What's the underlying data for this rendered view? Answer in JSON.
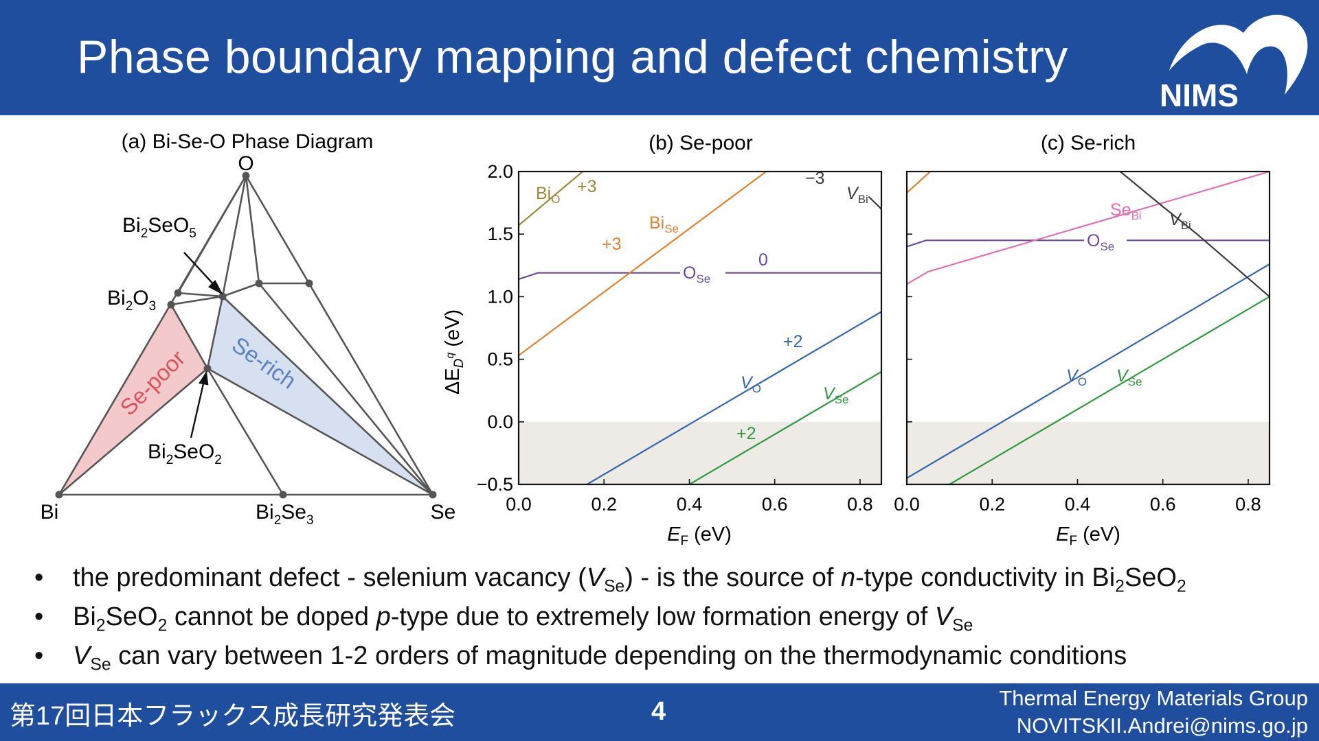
{
  "header": {
    "title": "Phase boundary mapping and defect chemistry",
    "logo_text": "NIMS"
  },
  "phase_diagram": {
    "title": "(a) Bi-Se-O Phase Diagram",
    "corner_o": "O",
    "corner_bi": "Bi",
    "corner_se": "Se",
    "label_bi2seo5": [
      "Bi",
      "2",
      "SeO",
      "5"
    ],
    "label_bi2o3": [
      "Bi",
      "2",
      "O",
      "3"
    ],
    "label_bi2seo2": [
      "Bi",
      "2",
      "SeO",
      "2"
    ],
    "label_bi2se3": [
      "Bi",
      "2",
      "Se",
      "3"
    ],
    "region_se_poor": "Se-poor",
    "region_se_rich": "Se-rich"
  },
  "chart_data": [
    {
      "type": "line",
      "title": "(b) Se-poor",
      "xlabel": "E_F (eV)",
      "ylabel": "ΔE_D^q (eV)",
      "xlim": [
        0.0,
        0.85
      ],
      "ylim": [
        -0.5,
        2.0
      ],
      "x_ticks": [
        "0.0",
        "0.2",
        "0.4",
        "0.6",
        "0.8"
      ],
      "y_ticks": [
        "−0.5",
        "0.0",
        "0.5",
        "1.0",
        "1.5",
        "2.0"
      ],
      "shaded_below_zero": true,
      "series": [
        {
          "name": "V_Se",
          "color": "#2e9940",
          "x": [
            0.4,
            0.85
          ],
          "y": [
            -0.5,
            0.4
          ]
        },
        {
          "name": "V_O",
          "color": "#3465ad",
          "x": [
            0.16,
            0.85
          ],
          "y": [
            -0.5,
            0.88
          ]
        },
        {
          "name": "O_Se",
          "color": "#6a4b9a",
          "x": [
            0.0,
            0.045,
            0.85
          ],
          "y": [
            1.14,
            1.19,
            1.19
          ]
        },
        {
          "name": "Bi_Se",
          "color": "#e0822e",
          "x": [
            0.0,
            0.58
          ],
          "y": [
            0.53,
            2.0
          ]
        },
        {
          "name": "Bi_O",
          "color": "#9a8a3a",
          "x": [
            0.0,
            0.15
          ],
          "y": [
            1.57,
            2.0
          ]
        },
        {
          "name": "V_Bi",
          "color": "#3a3a3a",
          "x": [
            0.82,
            0.85
          ],
          "y": [
            1.8,
            1.7
          ]
        }
      ],
      "annotations": {
        "vse_label": [
          "V",
          "Se"
        ],
        "vse_charge": "+2",
        "vo_label": [
          "V",
          "O"
        ],
        "vo_charge": "+2",
        "ose_label": [
          "O",
          "Se"
        ],
        "ose_charge": "0",
        "bise_label": [
          "Bi",
          "Se"
        ],
        "bise_charge": "+3",
        "bio_label": [
          "Bi",
          "O"
        ],
        "bio_charge": "+3",
        "vbi_label": [
          "V",
          "Bi"
        ],
        "vbi_charge": "−3"
      }
    },
    {
      "type": "line",
      "title": "(c) Se-rich",
      "xlabel": "E_F (eV)",
      "xlim": [
        0.0,
        0.85
      ],
      "ylim": [
        -0.5,
        2.0
      ],
      "x_ticks": [
        "0.0",
        "0.2",
        "0.4",
        "0.6",
        "0.8"
      ],
      "shaded_below_zero": true,
      "series": [
        {
          "name": "V_Se",
          "color": "#2e9940",
          "x": [
            0.1,
            0.85
          ],
          "y": [
            -0.5,
            1.0
          ]
        },
        {
          "name": "V_O",
          "color": "#3465ad",
          "x": [
            0.0,
            0.85
          ],
          "y": [
            -0.45,
            1.26
          ]
        },
        {
          "name": "O_Se",
          "color": "#6a4b9a",
          "x": [
            0.0,
            0.045,
            0.85
          ],
          "y": [
            1.4,
            1.45,
            1.45
          ]
        },
        {
          "name": "Se_Bi",
          "color": "#e36fb3",
          "x": [
            0.0,
            0.05,
            0.85
          ],
          "y": [
            1.1,
            1.2,
            2.0
          ]
        },
        {
          "name": "V_Bi",
          "color": "#3a3a3a",
          "x": [
            0.5,
            0.6,
            0.68,
            0.85
          ],
          "y": [
            2.0,
            1.72,
            1.5,
            1.0
          ]
        },
        {
          "name": "Bi_O",
          "color": "#e0822e",
          "x": [
            0.0,
            0.055
          ],
          "y": [
            1.83,
            2.0
          ]
        }
      ],
      "annotations": {
        "vse_label": [
          "V",
          "Se"
        ],
        "vo_label": [
          "V",
          "O"
        ],
        "ose_label": [
          "O",
          "Se"
        ],
        "sebi_label": [
          "Se",
          "Bi"
        ],
        "vbi_label": [
          "V",
          "Bi"
        ]
      }
    }
  ],
  "bullets": [
    {
      "t1": "the predominant defect - selenium vacancy (",
      "v": "V",
      "vsub": "Se",
      "t2": ") - is the source of ",
      "n": "n",
      "t3": "-type conductivity in Bi",
      "s1": "2",
      "t4": "SeO",
      "s2": "2"
    },
    {
      "t1": "Bi",
      "s1": "2",
      "t2": "SeO",
      "s2": "2",
      "t3": " cannot be doped ",
      "p": "p",
      "t4": "-type due to extremely low formation energy of ",
      "v": "V",
      "vsub": "Se"
    },
    {
      "v": "V",
      "vsub": "Se",
      "t1": " can vary between 1-2 orders of magnitude depending on the thermodynamic conditions"
    }
  ],
  "bullet_marker": "•",
  "footer": {
    "left": "第17回日本フラックス成長研究発表会",
    "page": "4",
    "group": "Thermal Energy Materials Group",
    "email": "NOVITSKII.Andrei@nims.go.jp"
  }
}
